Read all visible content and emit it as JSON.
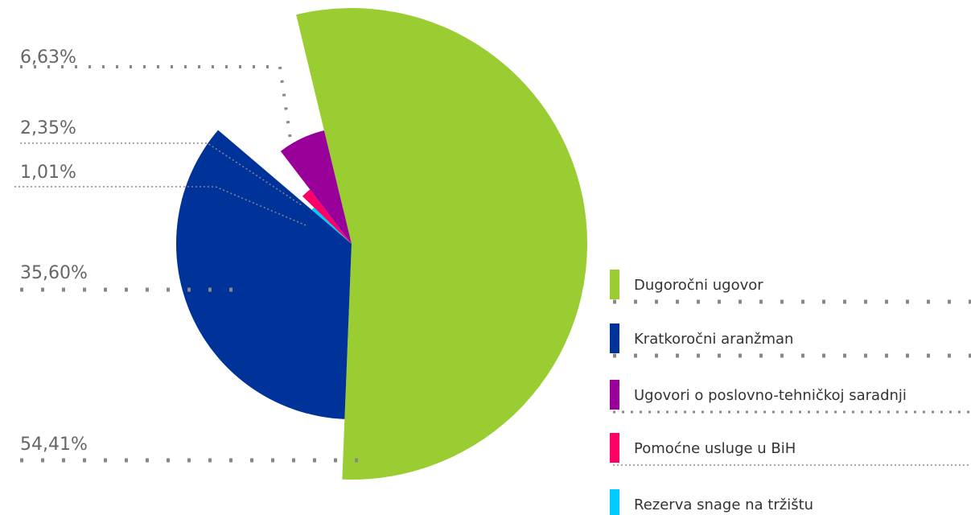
{
  "chart_data": {
    "type": "pie",
    "categories": [
      "Dugoročni ugovor",
      "Kratkoročni aranžman",
      "Ugovori o poslovno-tehničkoj saradnji",
      "Pomoćne usluge u BiH",
      "Rezerva snage na tržištu"
    ],
    "values": [
      54.41,
      35.6,
      6.63,
      2.35,
      1.01
    ],
    "value_labels": [
      "54,41%",
      "35,60%",
      "6,63%",
      "2,35%",
      "1,01%"
    ],
    "colors": [
      "#9acd32",
      "#003399",
      "#990099",
      "#ff0066",
      "#00ccff"
    ]
  }
}
